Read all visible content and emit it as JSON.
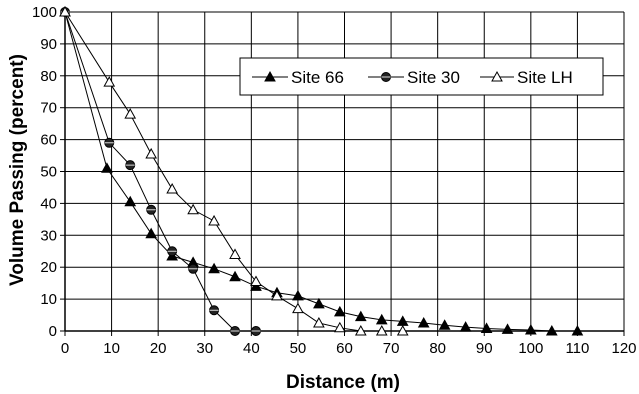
{
  "chart_data": {
    "type": "line",
    "title": "",
    "xlabel": "Distance (m)",
    "ylabel": "Volume Passing (percent)",
    "xlim": [
      0,
      120
    ],
    "ylim": [
      0,
      100
    ],
    "xticks": [
      0,
      10,
      20,
      30,
      40,
      50,
      60,
      70,
      80,
      90,
      100,
      110,
      120
    ],
    "yticks": [
      0,
      10,
      20,
      30,
      40,
      50,
      60,
      70,
      80,
      90,
      100
    ],
    "grid": true,
    "legend_position": "top-right",
    "series": [
      {
        "name": "Site 66",
        "marker": "filled-triangle",
        "x": [
          0,
          9,
          14,
          18.5,
          23,
          27.5,
          32,
          36.5,
          41,
          45.5,
          50,
          54.5,
          59,
          63.5,
          68,
          72.5,
          77,
          81.5,
          86,
          90.5,
          95,
          100,
          104.5,
          110
        ],
        "y": [
          100,
          51,
          40.5,
          30.5,
          23.5,
          21.5,
          19.5,
          17,
          14,
          12,
          11,
          8.5,
          6,
          4.5,
          3.5,
          3,
          2.5,
          1.8,
          1.2,
          0.8,
          0.5,
          0.3,
          0,
          0
        ]
      },
      {
        "name": "Site 30",
        "marker": "filled-circle",
        "x": [
          0,
          9.5,
          14,
          18.5,
          23,
          27.5,
          32,
          36.5,
          41
        ],
        "y": [
          100,
          59,
          52,
          38,
          25,
          19.5,
          6.5,
          0,
          0
        ]
      },
      {
        "name": "Site LH",
        "marker": "open-triangle",
        "x": [
          0,
          9.5,
          14,
          18.5,
          23,
          27.5,
          32,
          36.5,
          41,
          45.5,
          50,
          54.5,
          59,
          63.5,
          68,
          72.5
        ],
        "y": [
          100,
          78,
          68,
          55.5,
          44.5,
          38,
          34.5,
          24,
          15.5,
          11,
          7,
          2.5,
          1,
          0,
          0,
          0
        ]
      }
    ]
  }
}
